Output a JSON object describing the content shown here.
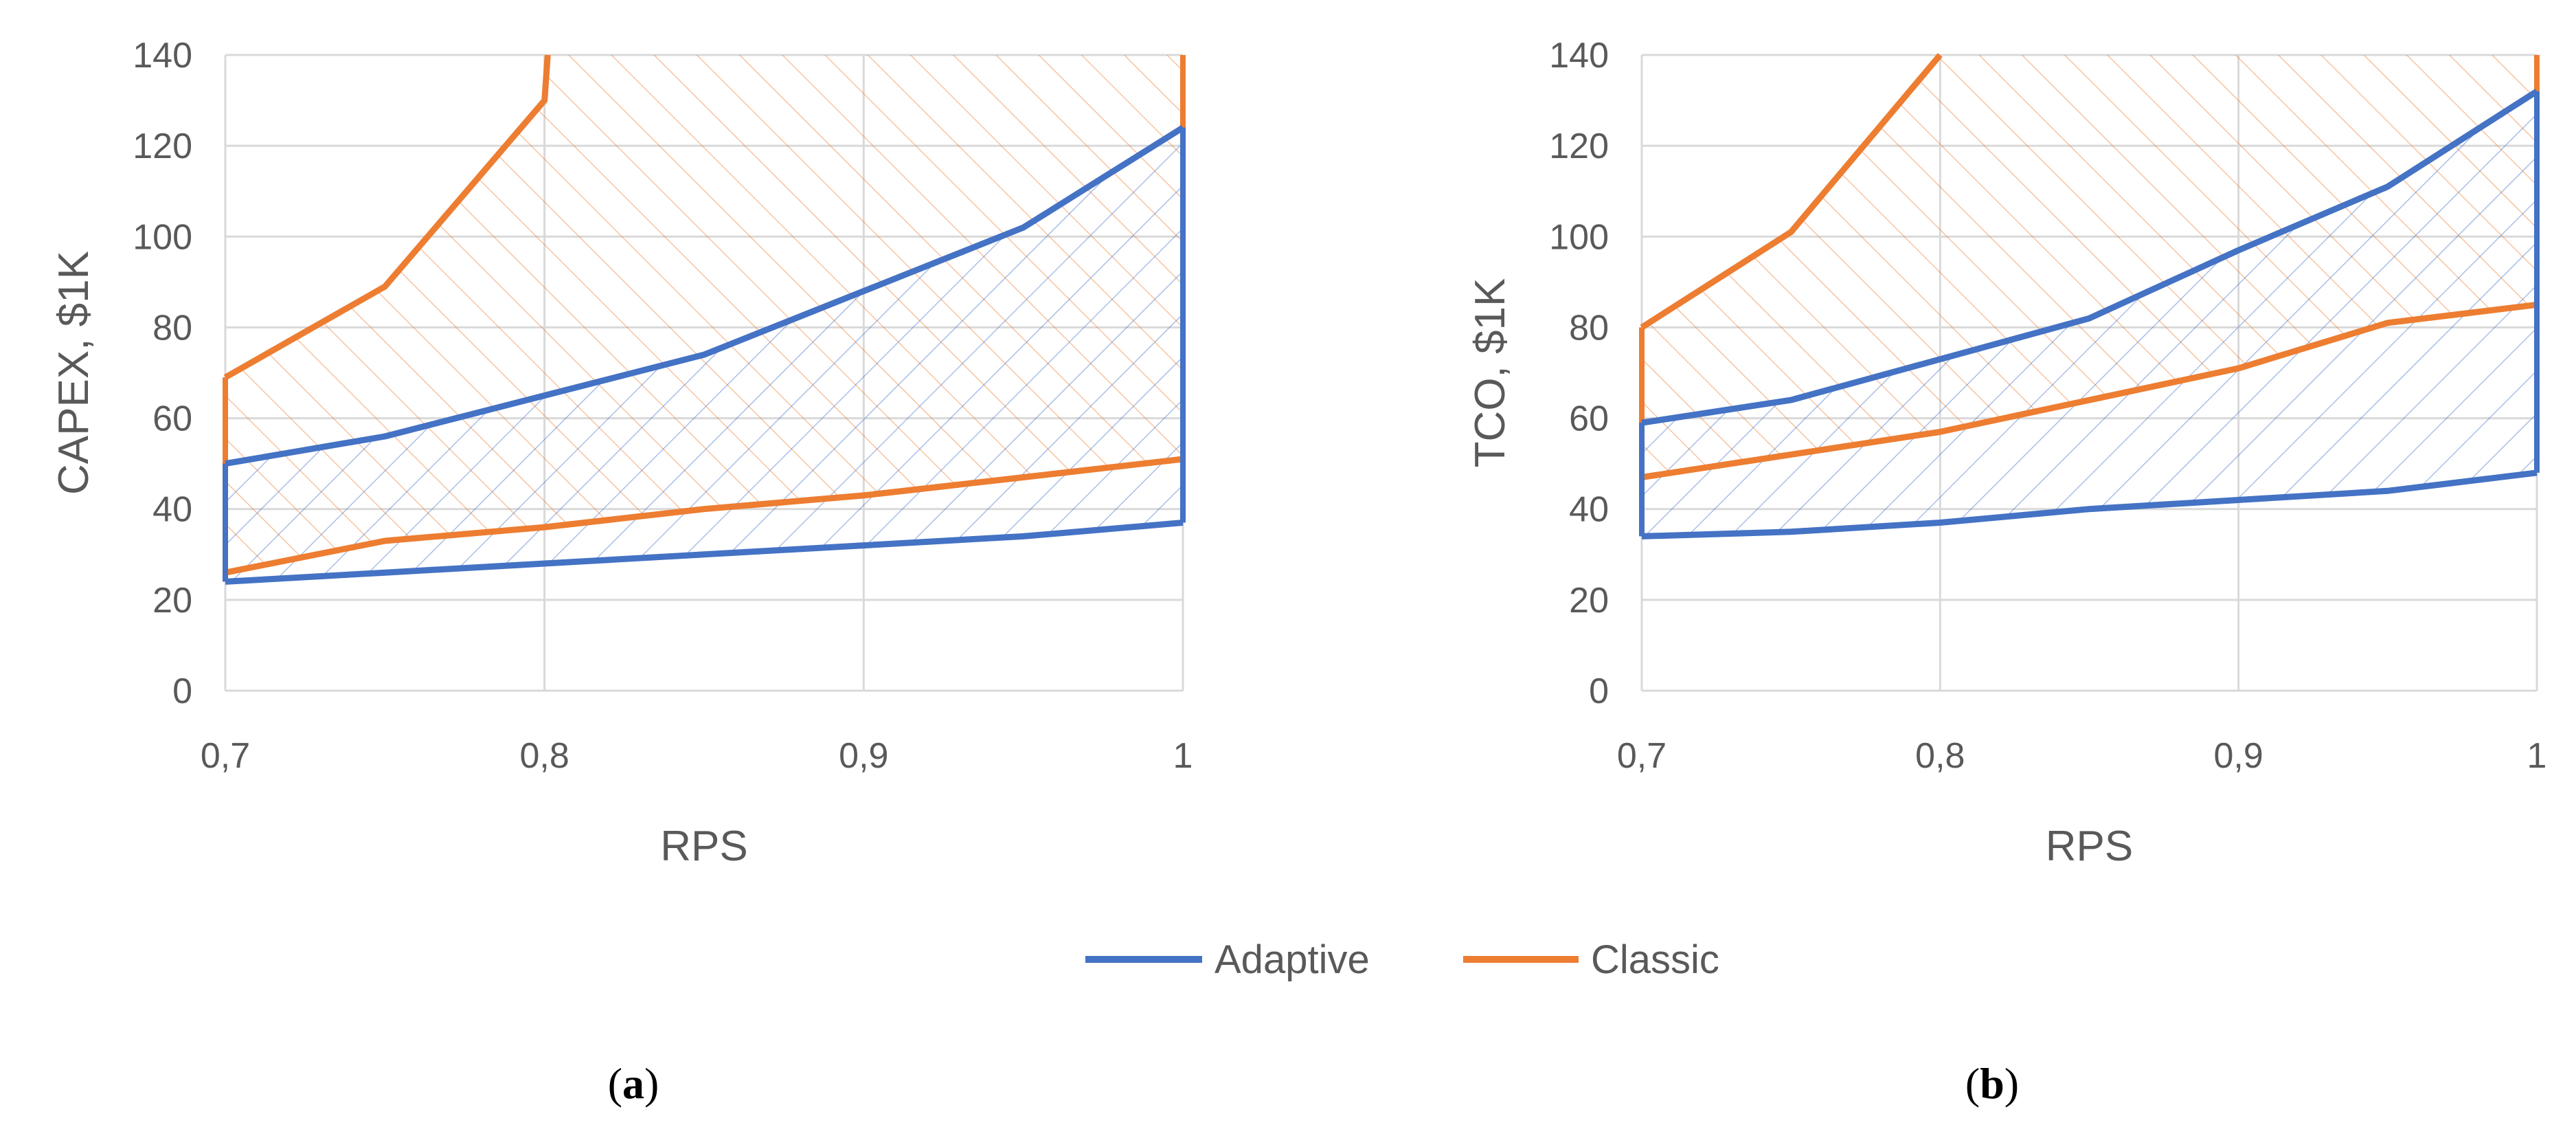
{
  "colors": {
    "adaptive": "#4472c4",
    "classic": "#ed7d31",
    "grid": "#d9d9d9",
    "text": "#595959"
  },
  "legend": [
    {
      "name": "Adaptive",
      "color": "#4472c4"
    },
    {
      "name": "Classic",
      "color": "#ed7d31"
    }
  ],
  "chart_data": [
    {
      "type": "area",
      "panel_label": "a",
      "title": "",
      "xlabel": "RPS",
      "ylabel": "CAPEX, $1K",
      "xlim": [
        0.7,
        1.0
      ],
      "ylim": [
        0,
        140
      ],
      "x_ticks": [
        "0,7",
        "0,8",
        "0,9",
        "1"
      ],
      "y_ticks": [
        "0",
        "20",
        "40",
        "60",
        "80",
        "100",
        "120",
        "140"
      ],
      "grid": true,
      "legend_position": "bottom",
      "series": [
        {
          "name": "Adaptive",
          "lower": {
            "x": [
              0.7,
              0.75,
              0.8,
              0.85,
              0.9,
              0.95,
              1.0
            ],
            "y": [
              24,
              26,
              28,
              30,
              32,
              34,
              37
            ]
          },
          "upper": {
            "x": [
              0.7,
              0.75,
              0.8,
              0.85,
              0.9,
              0.95,
              1.0
            ],
            "y": [
              50,
              56,
              65,
              74,
              88,
              102,
              124
            ]
          }
        },
        {
          "name": "Classic",
          "lower": {
            "x": [
              0.7,
              0.75,
              0.8,
              0.85,
              0.9,
              0.95,
              1.0
            ],
            "y": [
              26,
              33,
              36,
              40,
              43,
              47,
              51
            ]
          },
          "upper": {
            "x": [
              0.7,
              0.75,
              0.8,
              0.801
            ],
            "y": [
              69,
              89,
              130,
              140
            ]
          }
        }
      ]
    },
    {
      "type": "area",
      "panel_label": "b",
      "title": "",
      "xlabel": "RPS",
      "ylabel": "TCO, $1K",
      "xlim": [
        0.7,
        1.0
      ],
      "ylim": [
        0,
        140
      ],
      "x_ticks": [
        "0,7",
        "0,8",
        "0,9",
        "1"
      ],
      "y_ticks": [
        "0",
        "20",
        "40",
        "60",
        "80",
        "100",
        "120",
        "140"
      ],
      "grid": true,
      "legend_position": "bottom",
      "series": [
        {
          "name": "Adaptive",
          "lower": {
            "x": [
              0.7,
              0.75,
              0.8,
              0.85,
              0.9,
              0.95,
              1.0
            ],
            "y": [
              34,
              35,
              37,
              40,
              42,
              44,
              48
            ]
          },
          "upper": {
            "x": [
              0.7,
              0.75,
              0.8,
              0.85,
              0.9,
              0.95,
              1.0
            ],
            "y": [
              59,
              64,
              73,
              82,
              97,
              111,
              132
            ]
          }
        },
        {
          "name": "Classic",
          "lower": {
            "x": [
              0.7,
              0.75,
              0.8,
              0.85,
              0.9,
              0.95,
              1.0
            ],
            "y": [
              47,
              52,
              57,
              64,
              71,
              81,
              85
            ]
          },
          "upper": {
            "x": [
              0.7,
              0.75,
              0.8
            ],
            "y": [
              80,
              101,
              140
            ]
          }
        }
      ]
    }
  ]
}
